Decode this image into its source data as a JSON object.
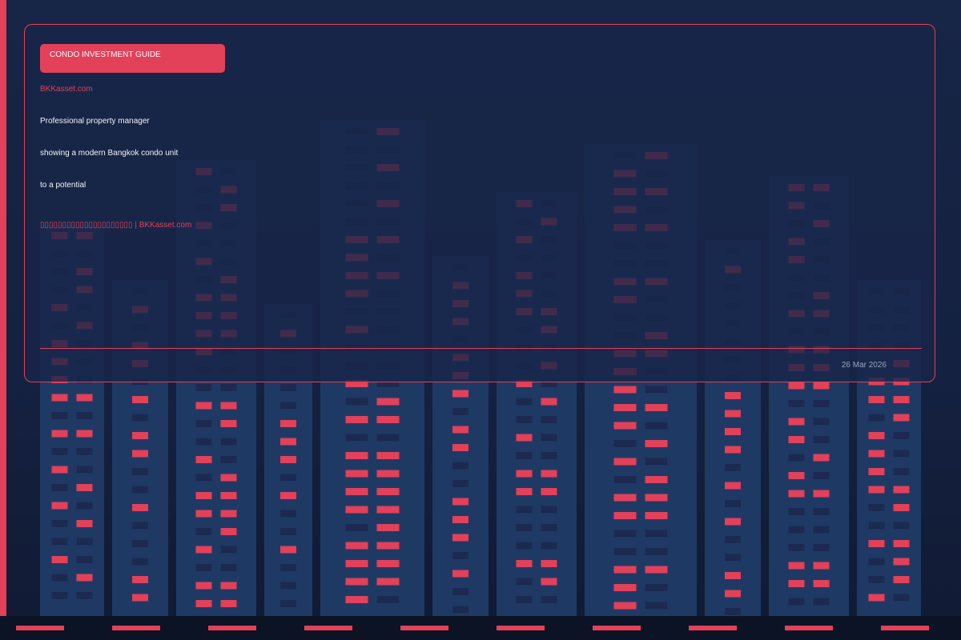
{
  "colors": {
    "accent": "#e34059",
    "background": "#172546",
    "building": "#1e3a64",
    "window_dark": "#1c2a52"
  },
  "card": {
    "tag": "CONDO INVESTMENT GUIDE",
    "brand": "BKKasset.com",
    "lines": [
      "Professional property manager",
      "showing a modern Bangkok condo unit",
      "to a potential"
    ],
    "source": "▯▯▯▯▯▯▯▯▯▯▯▯▯▯▯▯▯▯▯▯▯ | BKKasset.com",
    "date": "26 Mar 2026"
  }
}
